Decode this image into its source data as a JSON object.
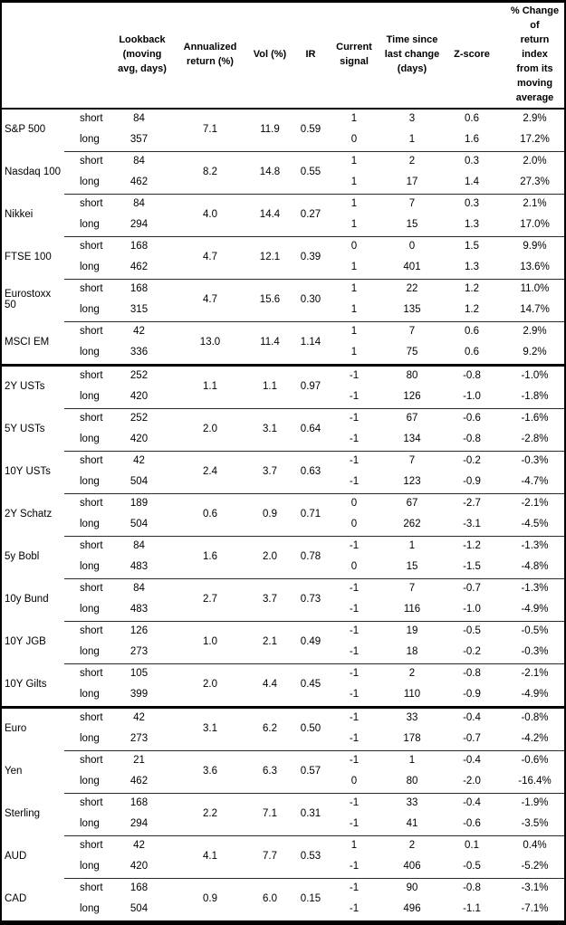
{
  "table": {
    "column_headers": [
      "",
      "",
      "Lookback\n(moving\navg, days)",
      "Annualized\nreturn (%)",
      "Vol (%)",
      "IR",
      "Current\nsignal",
      "Time since\nlast change\n(days)",
      "Z-score",
      "% Change of\nreturn index\nfrom its\nmoving\naverage"
    ],
    "groups": [
      {
        "asset": "S&P 500",
        "section_start": false,
        "annualized_return": "7.1",
        "vol": "11.9",
        "ir": "0.59",
        "rows": [
          {
            "side": "short",
            "lookback": "84",
            "signal": "1",
            "time_since": "3",
            "z_score": "0.6",
            "pct_change": "2.9%"
          },
          {
            "side": "long",
            "lookback": "357",
            "signal": "0",
            "time_since": "1",
            "z_score": "1.6",
            "pct_change": "17.2%"
          }
        ]
      },
      {
        "asset": "Nasdaq 100",
        "section_start": false,
        "annualized_return": "8.2",
        "vol": "14.8",
        "ir": "0.55",
        "rows": [
          {
            "side": "short",
            "lookback": "84",
            "signal": "1",
            "time_since": "2",
            "z_score": "0.3",
            "pct_change": "2.0%"
          },
          {
            "side": "long",
            "lookback": "462",
            "signal": "1",
            "time_since": "17",
            "z_score": "1.4",
            "pct_change": "27.3%"
          }
        ]
      },
      {
        "asset": "Nikkei",
        "section_start": false,
        "annualized_return": "4.0",
        "vol": "14.4",
        "ir": "0.27",
        "rows": [
          {
            "side": "short",
            "lookback": "84",
            "signal": "1",
            "time_since": "7",
            "z_score": "0.3",
            "pct_change": "2.1%"
          },
          {
            "side": "long",
            "lookback": "294",
            "signal": "1",
            "time_since": "15",
            "z_score": "1.3",
            "pct_change": "17.0%"
          }
        ]
      },
      {
        "asset": "FTSE 100",
        "section_start": false,
        "annualized_return": "4.7",
        "vol": "12.1",
        "ir": "0.39",
        "rows": [
          {
            "side": "short",
            "lookback": "168",
            "signal": "0",
            "time_since": "0",
            "z_score": "1.5",
            "pct_change": "9.9%"
          },
          {
            "side": "long",
            "lookback": "462",
            "signal": "1",
            "time_since": "401",
            "z_score": "1.3",
            "pct_change": "13.6%"
          }
        ]
      },
      {
        "asset": "Eurostoxx 50",
        "section_start": false,
        "annualized_return": "4.7",
        "vol": "15.6",
        "ir": "0.30",
        "rows": [
          {
            "side": "short",
            "lookback": "168",
            "signal": "1",
            "time_since": "22",
            "z_score": "1.2",
            "pct_change": "11.0%"
          },
          {
            "side": "long",
            "lookback": "315",
            "signal": "1",
            "time_since": "135",
            "z_score": "1.2",
            "pct_change": "14.7%"
          }
        ]
      },
      {
        "asset": "MSCI EM",
        "section_start": false,
        "annualized_return": "13.0",
        "vol": "11.4",
        "ir": "1.14",
        "rows": [
          {
            "side": "short",
            "lookback": "42",
            "signal": "1",
            "time_since": "7",
            "z_score": "0.6",
            "pct_change": "2.9%"
          },
          {
            "side": "long",
            "lookback": "336",
            "signal": "1",
            "time_since": "75",
            "z_score": "0.6",
            "pct_change": "9.2%"
          }
        ]
      },
      {
        "asset": "2Y USTs",
        "section_start": true,
        "annualized_return": "1.1",
        "vol": "1.1",
        "ir": "0.97",
        "rows": [
          {
            "side": "short",
            "lookback": "252",
            "signal": "-1",
            "time_since": "80",
            "z_score": "-0.8",
            "pct_change": "-1.0%"
          },
          {
            "side": "long",
            "lookback": "420",
            "signal": "-1",
            "time_since": "126",
            "z_score": "-1.0",
            "pct_change": "-1.8%"
          }
        ]
      },
      {
        "asset": "5Y USTs",
        "section_start": false,
        "annualized_return": "2.0",
        "vol": "3.1",
        "ir": "0.64",
        "rows": [
          {
            "side": "short",
            "lookback": "252",
            "signal": "-1",
            "time_since": "67",
            "z_score": "-0.6",
            "pct_change": "-1.6%"
          },
          {
            "side": "long",
            "lookback": "420",
            "signal": "-1",
            "time_since": "134",
            "z_score": "-0.8",
            "pct_change": "-2.8%"
          }
        ]
      },
      {
        "asset": "10Y USTs",
        "section_start": false,
        "annualized_return": "2.4",
        "vol": "3.7",
        "ir": "0.63",
        "rows": [
          {
            "side": "short",
            "lookback": "42",
            "signal": "-1",
            "time_since": "7",
            "z_score": "-0.2",
            "pct_change": "-0.3%"
          },
          {
            "side": "long",
            "lookback": "504",
            "signal": "-1",
            "time_since": "123",
            "z_score": "-0.9",
            "pct_change": "-4.7%"
          }
        ]
      },
      {
        "asset": "2Y Schatz",
        "section_start": false,
        "annualized_return": "0.6",
        "vol": "0.9",
        "ir": "0.71",
        "rows": [
          {
            "side": "short",
            "lookback": "189",
            "signal": "0",
            "time_since": "67",
            "z_score": "-2.7",
            "pct_change": "-2.1%"
          },
          {
            "side": "long",
            "lookback": "504",
            "signal": "0",
            "time_since": "262",
            "z_score": "-3.1",
            "pct_change": "-4.5%"
          }
        ]
      },
      {
        "asset": "5y Bobl",
        "section_start": false,
        "annualized_return": "1.6",
        "vol": "2.0",
        "ir": "0.78",
        "rows": [
          {
            "side": "short",
            "lookback": "84",
            "signal": "-1",
            "time_since": "1",
            "z_score": "-1.2",
            "pct_change": "-1.3%"
          },
          {
            "side": "long",
            "lookback": "483",
            "signal": "0",
            "time_since": "15",
            "z_score": "-1.5",
            "pct_change": "-4.8%"
          }
        ]
      },
      {
        "asset": "10y Bund",
        "section_start": false,
        "annualized_return": "2.7",
        "vol": "3.7",
        "ir": "0.73",
        "rows": [
          {
            "side": "short",
            "lookback": "84",
            "signal": "-1",
            "time_since": "7",
            "z_score": "-0.7",
            "pct_change": "-1.3%"
          },
          {
            "side": "long",
            "lookback": "483",
            "signal": "-1",
            "time_since": "116",
            "z_score": "-1.0",
            "pct_change": "-4.9%"
          }
        ]
      },
      {
        "asset": "10Y JGB",
        "section_start": false,
        "annualized_return": "1.0",
        "vol": "2.1",
        "ir": "0.49",
        "rows": [
          {
            "side": "short",
            "lookback": "126",
            "signal": "-1",
            "time_since": "19",
            "z_score": "-0.5",
            "pct_change": "-0.5%"
          },
          {
            "side": "long",
            "lookback": "273",
            "signal": "-1",
            "time_since": "18",
            "z_score": "-0.2",
            "pct_change": "-0.3%"
          }
        ]
      },
      {
        "asset": "10Y Gilts",
        "section_start": false,
        "annualized_return": "2.0",
        "vol": "4.4",
        "ir": "0.45",
        "rows": [
          {
            "side": "short",
            "lookback": "105",
            "signal": "-1",
            "time_since": "2",
            "z_score": "-0.8",
            "pct_change": "-2.1%"
          },
          {
            "side": "long",
            "lookback": "399",
            "signal": "-1",
            "time_since": "110",
            "z_score": "-0.9",
            "pct_change": "-4.9%"
          }
        ]
      },
      {
        "asset": "Euro",
        "section_start": true,
        "annualized_return": "3.1",
        "vol": "6.2",
        "ir": "0.50",
        "rows": [
          {
            "side": "short",
            "lookback": "42",
            "signal": "-1",
            "time_since": "33",
            "z_score": "-0.4",
            "pct_change": "-0.8%"
          },
          {
            "side": "long",
            "lookback": "273",
            "signal": "-1",
            "time_since": "178",
            "z_score": "-0.7",
            "pct_change": "-4.2%"
          }
        ]
      },
      {
        "asset": "Yen",
        "section_start": false,
        "annualized_return": "3.6",
        "vol": "6.3",
        "ir": "0.57",
        "rows": [
          {
            "side": "short",
            "lookback": "21",
            "signal": "-1",
            "time_since": "1",
            "z_score": "-0.4",
            "pct_change": "-0.6%"
          },
          {
            "side": "long",
            "lookback": "462",
            "signal": "0",
            "time_since": "80",
            "z_score": "-2.0",
            "pct_change": "-16.4%"
          }
        ]
      },
      {
        "asset": "Sterling",
        "section_start": false,
        "annualized_return": "2.2",
        "vol": "7.1",
        "ir": "0.31",
        "rows": [
          {
            "side": "short",
            "lookback": "168",
            "signal": "-1",
            "time_since": "33",
            "z_score": "-0.4",
            "pct_change": "-1.9%"
          },
          {
            "side": "long",
            "lookback": "294",
            "signal": "-1",
            "time_since": "41",
            "z_score": "-0.6",
            "pct_change": "-3.5%"
          }
        ]
      },
      {
        "asset": "AUD",
        "section_start": false,
        "annualized_return": "4.1",
        "vol": "7.7",
        "ir": "0.53",
        "rows": [
          {
            "side": "short",
            "lookback": "42",
            "signal": "1",
            "time_since": "2",
            "z_score": "0.1",
            "pct_change": "0.4%"
          },
          {
            "side": "long",
            "lookback": "420",
            "signal": "-1",
            "time_since": "406",
            "z_score": "-0.5",
            "pct_change": "-5.2%"
          }
        ]
      },
      {
        "asset": "CAD",
        "section_start": false,
        "annualized_return": "0.9",
        "vol": "6.0",
        "ir": "0.15",
        "rows": [
          {
            "side": "short",
            "lookback": "168",
            "signal": "-1",
            "time_since": "90",
            "z_score": "-0.8",
            "pct_change": "-3.1%"
          },
          {
            "side": "long",
            "lookback": "504",
            "signal": "-1",
            "time_since": "496",
            "z_score": "-1.1",
            "pct_change": "-7.1%"
          }
        ]
      }
    ]
  }
}
